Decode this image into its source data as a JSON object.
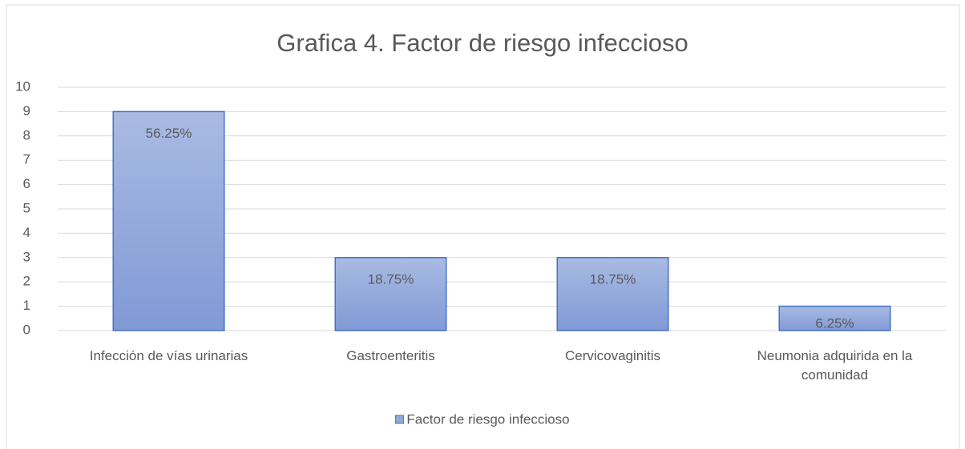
{
  "chart_data": {
    "type": "bar",
    "title": "Grafica 4. Factor de riesgo infeccioso",
    "categories": [
      "Infección de vías urinarias",
      "Gastroenteritis",
      "Cervicovaginitis",
      "Neumonia adquirida en la comunidad"
    ],
    "series": [
      {
        "name": "Factor de riesgo infeccioso",
        "color": "#8faadc",
        "values": [
          9,
          3,
          3,
          1
        ]
      }
    ],
    "data_labels": [
      "56.25%",
      "18.75%",
      "18.75%",
      "6.25%"
    ],
    "ylim": [
      0,
      10
    ],
    "yticks": [
      0,
      1,
      2,
      3,
      4,
      5,
      6,
      7,
      8,
      9,
      10
    ],
    "grid": true,
    "legend": "bottom"
  }
}
